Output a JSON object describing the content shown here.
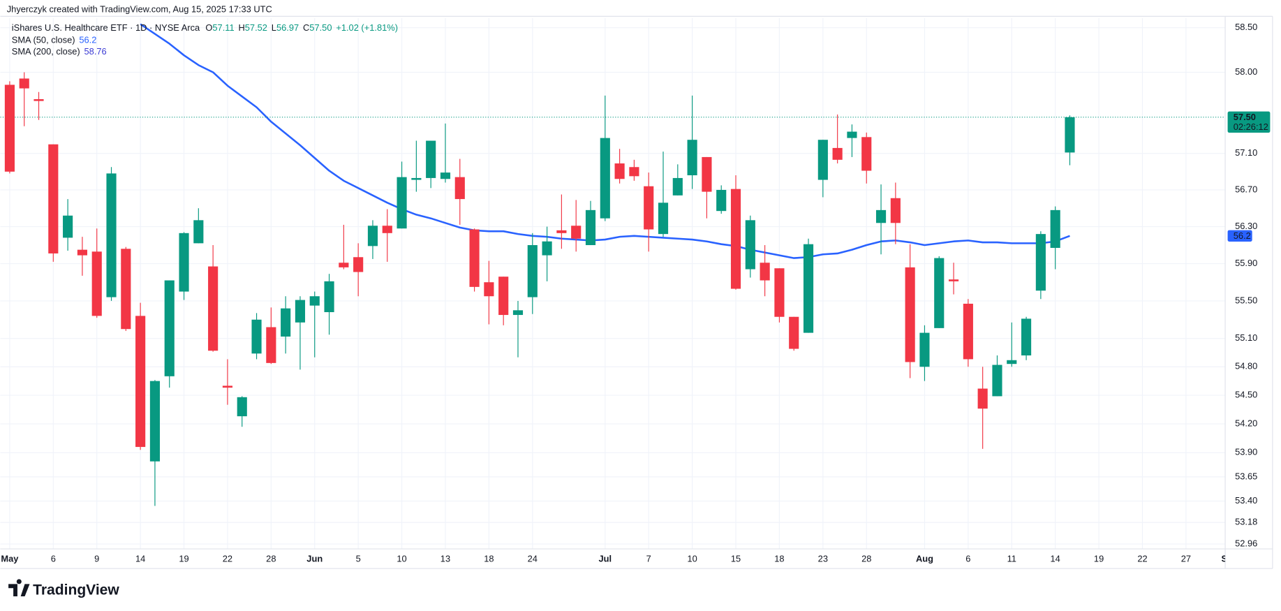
{
  "branding": {
    "credit": "Jhyerczyk created with TradingView.com, Aug 15, 2025 17:33 UTC",
    "logo": "TradingView"
  },
  "chart_data": {
    "type": "candlestick",
    "title": "iShares U.S. Healthcare ETF · 1D · NYSE Arca",
    "legend": {
      "ohlc": [
        {
          "key": "O",
          "value": "57.11"
        },
        {
          "key": "H",
          "value": "57.52"
        },
        {
          "key": "L",
          "value": "56.97"
        },
        {
          "key": "C",
          "value": "57.50"
        }
      ],
      "change": "+1.02 (+1.81%)"
    },
    "up_color": "#089981",
    "down_color": "#f23645",
    "open": [
      57.86,
      57.93,
      57.7,
      57.2,
      56.18,
      56.05,
      56.03,
      55.54,
      56.06,
      55.34,
      53.81,
      54.7,
      55.6,
      56.12,
      55.87,
      54.6,
      54.28,
      54.94,
      55.22,
      55.12,
      55.27,
      55.45,
      55.38,
      55.91,
      55.97,
      56.09,
      56.31,
      56.28,
      56.81,
      56.83,
      56.82,
      56.84,
      56.27,
      55.7,
      55.76,
      55.35,
      55.54,
      55.99,
      56.26,
      56.31,
      56.1,
      56.39,
      56.99,
      56.95,
      56.74,
      56.22,
      56.64,
      56.86,
      57.06,
      56.47,
      56.71,
      55.84,
      55.91,
      55.85,
      55.33,
      55.16,
      56.81,
      57.16,
      57.27,
      57.28,
      56.34,
      56.61,
      55.86,
      54.8,
      55.21,
      55.73,
      55.47,
      54.57,
      54.49,
      54.83,
      54.92,
      55.61,
      56.07,
      57.11
    ],
    "high": [
      57.9,
      58.0,
      57.78,
      57.2,
      56.6,
      56.19,
      56.28,
      56.95,
      56.08,
      55.48,
      54.66,
      55.72,
      56.24,
      56.5,
      56.1,
      54.88,
      54.49,
      55.37,
      55.43,
      55.55,
      55.55,
      55.6,
      55.79,
      56.32,
      56.12,
      56.37,
      56.49,
      57.01,
      57.24,
      57.24,
      57.43,
      57.04,
      56.28,
      55.93,
      55.76,
      55.5,
      56.23,
      56.3,
      56.65,
      56.59,
      56.58,
      57.74,
      57.15,
      57.03,
      56.89,
      57.12,
      56.98,
      57.74,
      57.06,
      56.75,
      56.86,
      56.42,
      56.1,
      55.85,
      55.33,
      56.17,
      57.25,
      57.53,
      57.42,
      57.33,
      56.76,
      56.78,
      56.11,
      55.24,
      55.98,
      55.91,
      55.52,
      54.8,
      54.92,
      55.27,
      55.33,
      56.25,
      56.52,
      57.52
    ],
    "low": [
      56.88,
      57.4,
      57.47,
      55.92,
      56.04,
      55.77,
      55.32,
      55.5,
      55.18,
      53.93,
      53.35,
      54.58,
      55.51,
      56.12,
      54.96,
      54.4,
      54.17,
      54.88,
      54.83,
      54.94,
      54.77,
      54.9,
      55.14,
      55.84,
      55.55,
      55.95,
      55.92,
      56.28,
      56.68,
      56.72,
      56.78,
      56.32,
      55.6,
      55.25,
      55.24,
      54.9,
      55.36,
      55.71,
      56.06,
      56.03,
      56.1,
      56.36,
      56.77,
      56.8,
      56.03,
      56.19,
      56.64,
      56.71,
      56.39,
      56.44,
      55.62,
      55.75,
      55.55,
      55.27,
      54.97,
      55.16,
      56.62,
      56.99,
      57.06,
      56.77,
      56.0,
      56.11,
      54.68,
      54.65,
      55.21,
      55.57,
      54.8,
      53.94,
      54.49,
      54.8,
      54.87,
      55.52,
      55.84,
      56.97
    ],
    "close": [
      56.9,
      57.82,
      57.68,
      56.01,
      56.42,
      55.99,
      55.34,
      56.88,
      55.2,
      53.96,
      54.65,
      55.72,
      56.23,
      56.37,
      54.97,
      54.58,
      54.48,
      55.3,
      54.84,
      55.42,
      55.51,
      55.55,
      55.71,
      55.86,
      55.81,
      56.31,
      56.23,
      56.84,
      56.83,
      57.24,
      56.89,
      56.6,
      55.65,
      55.55,
      55.35,
      55.4,
      56.1,
      56.14,
      56.23,
      56.17,
      56.48,
      57.27,
      56.82,
      56.85,
      56.27,
      56.56,
      56.83,
      57.25,
      56.68,
      56.7,
      55.63,
      56.37,
      55.72,
      55.33,
      54.99,
      56.11,
      57.25,
      57.03,
      57.34,
      56.91,
      56.48,
      56.34,
      54.85,
      55.16,
      55.96,
      55.71,
      54.88,
      54.36,
      54.82,
      54.87,
      55.31,
      56.22,
      56.48,
      57.5
    ],
    "overlays": [
      {
        "name": "SMA (50, close)",
        "color": "#2962ff",
        "values": [
          null,
          null,
          null,
          null,
          null,
          null,
          null,
          null,
          null,
          58.54,
          58.43,
          58.32,
          58.19,
          58.08,
          58.0,
          57.85,
          57.73,
          57.61,
          57.45,
          57.32,
          57.19,
          57.05,
          56.91,
          56.8,
          56.72,
          56.64,
          56.56,
          56.49,
          56.43,
          56.39,
          56.34,
          56.29,
          56.26,
          56.25,
          56.25,
          56.22,
          56.2,
          56.19,
          56.17,
          56.16,
          56.15,
          56.16,
          56.19,
          56.2,
          56.19,
          56.18,
          56.17,
          56.16,
          56.14,
          56.11,
          56.09,
          56.05,
          56.02,
          55.99,
          55.96,
          55.97,
          56.0,
          56.01,
          56.05,
          56.1,
          56.14,
          56.15,
          56.13,
          56.1,
          56.12,
          56.14,
          56.15,
          56.13,
          56.13,
          56.12,
          56.12,
          56.12,
          56.14,
          56.2
        ]
      },
      {
        "name": "SMA (200, close)",
        "color": "#3c3cd4",
        "last_value": 58.76
      }
    ],
    "last_price": {
      "value": 57.5,
      "label": "57.50",
      "countdown": "02:26:12"
    },
    "log": true,
    "grid": true,
    "xlim": [
      -0.2,
      83.7
    ],
    "ylim": [
      52.91,
      58.61
    ],
    "yticks": [
      {
        "value": 58.5,
        "label": "58.50"
      },
      {
        "value": 58,
        "label": "58.00"
      },
      {
        "value": 57.1,
        "label": "57.10"
      },
      {
        "value": 56.7,
        "label": "56.70"
      },
      {
        "value": 56.3,
        "label": "56.30"
      },
      {
        "value": 55.9,
        "label": "55.90"
      },
      {
        "value": 55.5,
        "label": "55.50"
      },
      {
        "value": 55.1,
        "label": "55.10"
      },
      {
        "value": 54.8,
        "label": "54.80"
      },
      {
        "value": 54.5,
        "label": "54.50"
      },
      {
        "value": 54.2,
        "label": "54.20"
      },
      {
        "value": 53.9,
        "label": "53.90"
      },
      53.65,
      {
        "value": 53.4,
        "label": "53.40"
      },
      53.18,
      52.96
    ],
    "xticks": [
      {
        "value": 0,
        "label": "May"
      },
      {
        "value": 3,
        "label": "6"
      },
      {
        "value": 6,
        "label": "9"
      },
      {
        "value": 9,
        "label": "14"
      },
      {
        "value": 12,
        "label": "19"
      },
      {
        "value": 15,
        "label": "22"
      },
      {
        "value": 18,
        "label": "28"
      },
      {
        "value": 21,
        "label": "Jun"
      },
      {
        "value": 24,
        "label": "5"
      },
      {
        "value": 27,
        "label": "10"
      },
      {
        "value": 30,
        "label": "13"
      },
      {
        "value": 33,
        "label": "18"
      },
      {
        "value": 36,
        "label": "24"
      },
      {
        "value": 41,
        "label": "Jul"
      },
      {
        "value": 44,
        "label": "7"
      },
      {
        "value": 47,
        "label": "10"
      },
      {
        "value": 50,
        "label": "15"
      },
      {
        "value": 53,
        "label": "18"
      },
      {
        "value": 56,
        "label": "23"
      },
      {
        "value": 59,
        "label": "28"
      },
      {
        "value": 63,
        "label": "Aug"
      },
      {
        "value": 66,
        "label": "6"
      },
      {
        "value": 69,
        "label": "11"
      },
      {
        "value": 72,
        "label": "14"
      },
      {
        "value": 75,
        "label": "19"
      },
      {
        "value": 78,
        "label": "22"
      },
      {
        "value": 81,
        "label": "27"
      },
      {
        "value": 84,
        "label": "Sep"
      }
    ]
  }
}
